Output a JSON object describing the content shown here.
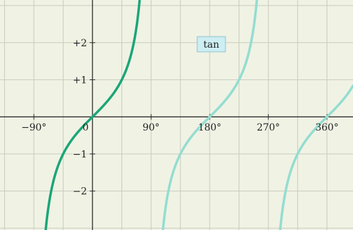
{
  "chart_data": {
    "type": "line",
    "title": "",
    "xlabel": "",
    "ylabel": "",
    "xlim": [
      -142,
      400
    ],
    "ylim": [
      -3.05,
      3.15
    ],
    "grid": true,
    "legend": {
      "label": "tan",
      "placement": "top-center"
    },
    "x_ticks": [
      {
        "value": -90,
        "label": "−90°"
      },
      {
        "value": 0,
        "label": "0"
      },
      {
        "value": 90,
        "label": "90°"
      },
      {
        "value": 180,
        "label": "180°"
      },
      {
        "value": 270,
        "label": "270°"
      },
      {
        "value": 360,
        "label": "360°"
      }
    ],
    "y_ticks": [
      {
        "value": 2,
        "label": "+2"
      },
      {
        "value": 1,
        "label": "+1"
      },
      {
        "value": -1,
        "label": "−1"
      },
      {
        "value": -2,
        "label": "−2"
      }
    ],
    "function": "tan",
    "series": [
      {
        "x_range": [
          -72,
          77
        ],
        "color": "#1aa678",
        "width": 3.5
      },
      {
        "x_range": [
          108,
          257
        ],
        "color": "#93ddd1",
        "width": 3.5
      },
      {
        "x_range": [
          288,
          400
        ],
        "color": "#93ddd1",
        "width": 3.5
      }
    ],
    "colors": {
      "background": "#f0f2e4",
      "grid": "#c8cbbd",
      "axis": "#2b2b2b",
      "legend_fill": "#cdeef3",
      "legend_border": "#8fc3cf"
    }
  }
}
